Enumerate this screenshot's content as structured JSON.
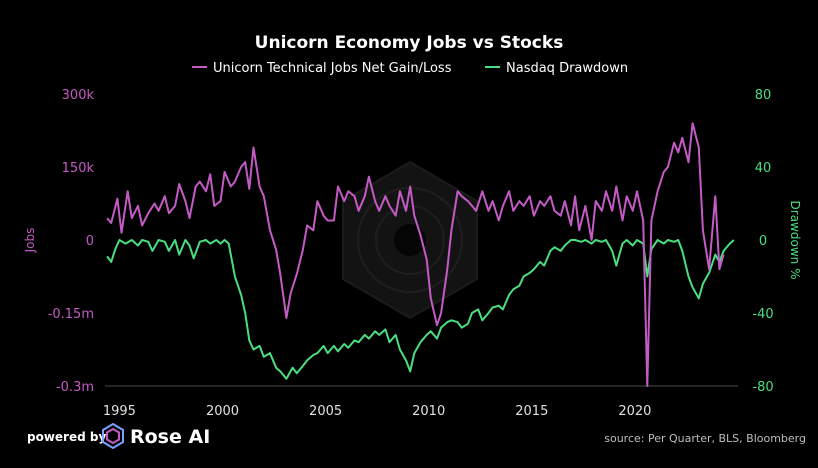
{
  "chart_data": {
    "type": "line",
    "title": "Unicorn Economy Jobs vs Stocks",
    "x_ticks": [
      "1995",
      "2000",
      "2005",
      "2010",
      "2015",
      "2020"
    ],
    "y_left": {
      "label": "Jobs",
      "ticks": [
        "300k",
        "150k",
        "0",
        "-0.15m",
        "-0.3m"
      ],
      "range": [
        -300000,
        300000
      ]
    },
    "y_right": {
      "label": "Drawdown %",
      "ticks": [
        "80",
        "40",
        "0",
        "-40",
        "-80"
      ],
      "range": [
        -80,
        80
      ]
    },
    "x_range": [
      1994.3,
      2025
    ],
    "grid": false,
    "legend_position": "top",
    "series": [
      {
        "name": "Unicorn Technical Jobs Net Gain/Loss",
        "axis": "left",
        "color": "#c45bc4",
        "points": [
          [
            1994.4,
            45000
          ],
          [
            1994.6,
            35000
          ],
          [
            1994.9,
            85000
          ],
          [
            1995.1,
            15000
          ],
          [
            1995.4,
            100000
          ],
          [
            1995.6,
            45000
          ],
          [
            1995.9,
            70000
          ],
          [
            1996.1,
            30000
          ],
          [
            1996.4,
            55000
          ],
          [
            1996.7,
            75000
          ],
          [
            1996.9,
            60000
          ],
          [
            1997.2,
            90000
          ],
          [
            1997.4,
            55000
          ],
          [
            1997.7,
            70000
          ],
          [
            1997.9,
            115000
          ],
          [
            1998.2,
            80000
          ],
          [
            1998.4,
            45000
          ],
          [
            1998.7,
            110000
          ],
          [
            1998.9,
            120000
          ],
          [
            1999.2,
            100000
          ],
          [
            1999.4,
            135000
          ],
          [
            1999.6,
            70000
          ],
          [
            1999.9,
            80000
          ],
          [
            2000.1,
            140000
          ],
          [
            2000.4,
            110000
          ],
          [
            2000.6,
            120000
          ],
          [
            2000.9,
            150000
          ],
          [
            2001.1,
            160000
          ],
          [
            2001.3,
            105000
          ],
          [
            2001.5,
            190000
          ],
          [
            2001.8,
            110000
          ],
          [
            2002.0,
            90000
          ],
          [
            2002.3,
            20000
          ],
          [
            2002.6,
            -20000
          ],
          [
            2002.8,
            -70000
          ],
          [
            2003.1,
            -160000
          ],
          [
            2003.3,
            -110000
          ],
          [
            2003.6,
            -70000
          ],
          [
            2003.9,
            -20000
          ],
          [
            2004.1,
            30000
          ],
          [
            2004.4,
            20000
          ],
          [
            2004.6,
            80000
          ],
          [
            2004.9,
            50000
          ],
          [
            2005.1,
            40000
          ],
          [
            2005.4,
            40000
          ],
          [
            2005.6,
            110000
          ],
          [
            2005.9,
            80000
          ],
          [
            2006.1,
            100000
          ],
          [
            2006.4,
            90000
          ],
          [
            2006.6,
            60000
          ],
          [
            2006.9,
            90000
          ],
          [
            2007.1,
            130000
          ],
          [
            2007.4,
            80000
          ],
          [
            2007.6,
            60000
          ],
          [
            2007.9,
            90000
          ],
          [
            2008.1,
            70000
          ],
          [
            2008.4,
            50000
          ],
          [
            2008.6,
            100000
          ],
          [
            2008.9,
            60000
          ],
          [
            2009.1,
            110000
          ],
          [
            2009.3,
            50000
          ],
          [
            2009.6,
            10000
          ],
          [
            2009.9,
            -40000
          ],
          [
            2010.1,
            -120000
          ],
          [
            2010.4,
            -175000
          ],
          [
            2010.6,
            -150000
          ],
          [
            2010.9,
            -60000
          ],
          [
            2011.1,
            20000
          ],
          [
            2011.4,
            100000
          ],
          [
            2011.6,
            90000
          ],
          [
            2011.9,
            80000
          ],
          [
            2012.1,
            70000
          ],
          [
            2012.3,
            60000
          ],
          [
            2012.6,
            100000
          ],
          [
            2012.9,
            60000
          ],
          [
            2013.1,
            80000
          ],
          [
            2013.4,
            40000
          ],
          [
            2013.6,
            70000
          ],
          [
            2013.9,
            100000
          ],
          [
            2014.1,
            60000
          ],
          [
            2014.4,
            80000
          ],
          [
            2014.6,
            70000
          ],
          [
            2014.9,
            90000
          ],
          [
            2015.1,
            50000
          ],
          [
            2015.4,
            80000
          ],
          [
            2015.6,
            70000
          ],
          [
            2015.9,
            90000
          ],
          [
            2016.1,
            60000
          ],
          [
            2016.4,
            50000
          ],
          [
            2016.6,
            80000
          ],
          [
            2016.9,
            30000
          ],
          [
            2017.1,
            90000
          ],
          [
            2017.3,
            20000
          ],
          [
            2017.6,
            70000
          ],
          [
            2017.9,
            0
          ],
          [
            2018.1,
            80000
          ],
          [
            2018.4,
            60000
          ],
          [
            2018.6,
            100000
          ],
          [
            2018.9,
            60000
          ],
          [
            2019.1,
            110000
          ],
          [
            2019.4,
            40000
          ],
          [
            2019.6,
            90000
          ],
          [
            2019.9,
            60000
          ],
          [
            2020.1,
            100000
          ],
          [
            2020.4,
            40000
          ],
          [
            2020.6,
            -300000
          ],
          [
            2020.8,
            40000
          ],
          [
            2021.1,
            100000
          ],
          [
            2021.4,
            140000
          ],
          [
            2021.6,
            150000
          ],
          [
            2021.9,
            200000
          ],
          [
            2022.1,
            180000
          ],
          [
            2022.3,
            210000
          ],
          [
            2022.6,
            160000
          ],
          [
            2022.8,
            240000
          ],
          [
            2023.1,
            190000
          ],
          [
            2023.3,
            20000
          ],
          [
            2023.6,
            -60000
          ],
          [
            2023.9,
            90000
          ],
          [
            2024.1,
            -60000
          ],
          [
            2024.3,
            -30000
          ]
        ]
      },
      {
        "name": "Nasdaq Drawdown",
        "axis": "right",
        "color": "#4ade80",
        "points": [
          [
            1994.4,
            -9
          ],
          [
            1994.6,
            -12
          ],
          [
            1994.8,
            -5
          ],
          [
            1995.0,
            0
          ],
          [
            1995.3,
            -2
          ],
          [
            1995.6,
            0
          ],
          [
            1995.9,
            -3
          ],
          [
            1996.1,
            0
          ],
          [
            1996.4,
            -1
          ],
          [
            1996.6,
            -6
          ],
          [
            1996.9,
            0
          ],
          [
            1997.2,
            -1
          ],
          [
            1997.4,
            -6
          ],
          [
            1997.7,
            0
          ],
          [
            1997.9,
            -8
          ],
          [
            1998.2,
            0
          ],
          [
            1998.4,
            -3
          ],
          [
            1998.6,
            -10
          ],
          [
            1998.9,
            -1
          ],
          [
            1999.2,
            0
          ],
          [
            1999.4,
            -2
          ],
          [
            1999.7,
            0
          ],
          [
            1999.9,
            -2
          ],
          [
            2000.1,
            0
          ],
          [
            2000.3,
            -2
          ],
          [
            2000.6,
            -20
          ],
          [
            2000.9,
            -30
          ],
          [
            2001.1,
            -40
          ],
          [
            2001.3,
            -55
          ],
          [
            2001.5,
            -60
          ],
          [
            2001.8,
            -58
          ],
          [
            2002.0,
            -64
          ],
          [
            2002.3,
            -62
          ],
          [
            2002.6,
            -70
          ],
          [
            2002.8,
            -72
          ],
          [
            2003.1,
            -76
          ],
          [
            2003.4,
            -70
          ],
          [
            2003.6,
            -73
          ],
          [
            2003.9,
            -69
          ],
          [
            2004.1,
            -66
          ],
          [
            2004.4,
            -63
          ],
          [
            2004.6,
            -62
          ],
          [
            2004.9,
            -58
          ],
          [
            2005.1,
            -62
          ],
          [
            2005.4,
            -58
          ],
          [
            2005.6,
            -61
          ],
          [
            2005.9,
            -57
          ],
          [
            2006.1,
            -59
          ],
          [
            2006.4,
            -55
          ],
          [
            2006.6,
            -56
          ],
          [
            2006.9,
            -52
          ],
          [
            2007.1,
            -54
          ],
          [
            2007.4,
            -50
          ],
          [
            2007.6,
            -52
          ],
          [
            2007.9,
            -49
          ],
          [
            2008.1,
            -56
          ],
          [
            2008.4,
            -52
          ],
          [
            2008.6,
            -60
          ],
          [
            2008.9,
            -66
          ],
          [
            2009.1,
            -72
          ],
          [
            2009.3,
            -62
          ],
          [
            2009.6,
            -56
          ],
          [
            2009.9,
            -52
          ],
          [
            2010.1,
            -50
          ],
          [
            2010.4,
            -54
          ],
          [
            2010.6,
            -48
          ],
          [
            2010.9,
            -45
          ],
          [
            2011.1,
            -44
          ],
          [
            2011.4,
            -45
          ],
          [
            2011.6,
            -48
          ],
          [
            2011.9,
            -46
          ],
          [
            2012.1,
            -40
          ],
          [
            2012.4,
            -38
          ],
          [
            2012.6,
            -44
          ],
          [
            2012.9,
            -40
          ],
          [
            2013.1,
            -37
          ],
          [
            2013.4,
            -36
          ],
          [
            2013.6,
            -38
          ],
          [
            2013.9,
            -30
          ],
          [
            2014.1,
            -27
          ],
          [
            2014.4,
            -25
          ],
          [
            2014.6,
            -20
          ],
          [
            2014.9,
            -18
          ],
          [
            2015.1,
            -16
          ],
          [
            2015.4,
            -12
          ],
          [
            2015.6,
            -14
          ],
          [
            2015.9,
            -6
          ],
          [
            2016.1,
            -4
          ],
          [
            2016.4,
            -6
          ],
          [
            2016.6,
            -3
          ],
          [
            2016.9,
            0
          ],
          [
            2017.1,
            0
          ],
          [
            2017.4,
            -1
          ],
          [
            2017.6,
            0
          ],
          [
            2017.9,
            -2
          ],
          [
            2018.1,
            0
          ],
          [
            2018.4,
            -1
          ],
          [
            2018.6,
            0
          ],
          [
            2018.9,
            -6
          ],
          [
            2019.1,
            -14
          ],
          [
            2019.4,
            -2
          ],
          [
            2019.6,
            0
          ],
          [
            2019.9,
            -3
          ],
          [
            2020.1,
            0
          ],
          [
            2020.4,
            -2
          ],
          [
            2020.6,
            -20
          ],
          [
            2020.8,
            -5
          ],
          [
            2021.1,
            0
          ],
          [
            2021.4,
            -2
          ],
          [
            2021.6,
            0
          ],
          [
            2021.9,
            -1
          ],
          [
            2022.1,
            0
          ],
          [
            2022.3,
            -6
          ],
          [
            2022.6,
            -20
          ],
          [
            2022.8,
            -26
          ],
          [
            2023.1,
            -32
          ],
          [
            2023.3,
            -24
          ],
          [
            2023.6,
            -18
          ],
          [
            2023.9,
            -8
          ],
          [
            2024.1,
            -12
          ],
          [
            2024.3,
            -6
          ],
          [
            2024.6,
            -2
          ],
          [
            2024.8,
            0
          ]
        ]
      }
    ]
  },
  "footer": {
    "powered_by": "powered by",
    "brand": "Rose AI",
    "source": "source: Per Quarter, BLS, Bloomberg"
  },
  "colors": {
    "background": "#000000",
    "jobs": "#c45bc4",
    "drawdown": "#4ade80"
  }
}
